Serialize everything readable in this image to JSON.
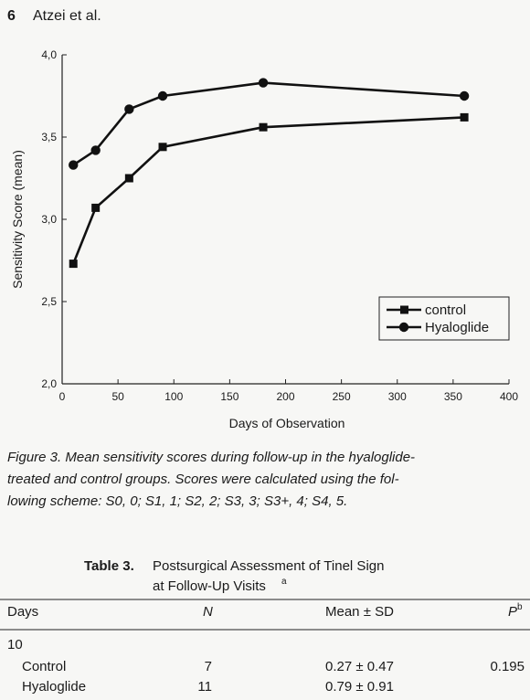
{
  "header": {
    "page_number": "6",
    "authors": "Atzei et al."
  },
  "chart_data": {
    "type": "line",
    "xlabel": "Days of Observation",
    "ylabel": "Sensitivity Score (mean)",
    "x": [
      10,
      30,
      60,
      90,
      180,
      360
    ],
    "series": [
      {
        "name": "control",
        "color": "#111111",
        "marker": "square",
        "values": [
          2.73,
          3.07,
          3.25,
          3.44,
          3.56,
          3.62
        ]
      },
      {
        "name": "Hyaloglide",
        "color": "#111111",
        "marker": "circle",
        "values": [
          3.33,
          3.42,
          3.67,
          3.75,
          3.83,
          3.75
        ]
      }
    ],
    "xlim": [
      0,
      400
    ],
    "xticks": [
      0,
      50,
      100,
      150,
      200,
      250,
      300,
      350,
      400
    ],
    "ylim": [
      2.0,
      4.0
    ],
    "yticks": [
      {
        "value": 2.0,
        "label": "2,0"
      },
      {
        "value": 2.5,
        "label": "2,5"
      },
      {
        "value": 3.0,
        "label": "3,0"
      },
      {
        "value": 3.5,
        "label": "3,5"
      },
      {
        "value": 4.0,
        "label": "4,0"
      }
    ],
    "grid": false,
    "legend": "lower right"
  },
  "caption": {
    "lines": [
      "Figure 3. Mean sensitivity scores during follow-up in the hyaloglide-",
      "treated and control groups. Scores were calculated using the fol-",
      "lowing scheme: S0, 0; S1, 1; S2, 2; S3, 3; S3+, 4; S4, 5."
    ]
  },
  "table": {
    "label": "Table 3.",
    "title": "Postsurgical Assessment of Tinel Sign",
    "subtitle": "at Follow-Up Visits",
    "subtitle_note": "a",
    "columns": [
      "Days",
      "N",
      "Mean ± SD",
      "P"
    ],
    "p_note": "b",
    "group": "10",
    "rows": [
      {
        "label": "Control",
        "n": 7,
        "mean_sd": "0.27 ± 0.47",
        "p": "0.195"
      },
      {
        "label": "Hyaloglide",
        "n": 11,
        "mean_sd": "0.79 ± 0.91"
      }
    ]
  }
}
